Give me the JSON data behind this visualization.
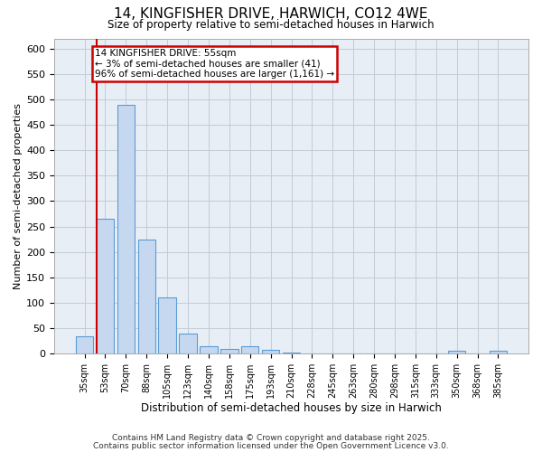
{
  "title_line1": "14, KINGFISHER DRIVE, HARWICH, CO12 4WE",
  "title_line2": "Size of property relative to semi-detached houses in Harwich",
  "xlabel": "Distribution of semi-detached houses by size in Harwich",
  "ylabel": "Number of semi-detached properties",
  "bar_labels": [
    "35sqm",
    "53sqm",
    "70sqm",
    "88sqm",
    "105sqm",
    "123sqm",
    "140sqm",
    "158sqm",
    "175sqm",
    "193sqm",
    "210sqm",
    "228sqm",
    "245sqm",
    "263sqm",
    "280sqm",
    "298sqm",
    "315sqm",
    "333sqm",
    "350sqm",
    "368sqm",
    "385sqm"
  ],
  "bar_values": [
    35,
    265,
    490,
    225,
    110,
    40,
    15,
    10,
    15,
    7,
    2,
    1,
    1,
    1,
    1,
    1,
    0,
    0,
    5,
    0,
    5
  ],
  "bar_color": "#c5d8f0",
  "bar_edge_color": "#5b9bd5",
  "grid_color": "#c0ccd8",
  "bg_color": "#e8eef5",
  "red_line_index": 1,
  "annotation_text": "14 KINGFISHER DRIVE: 55sqm\n← 3% of semi-detached houses are smaller (41)\n96% of semi-detached houses are larger (1,161) →",
  "annotation_box_color": "#ffffff",
  "annotation_edge_color": "#cc0000",
  "red_line_color": "#cc0000",
  "ylim": [
    0,
    620
  ],
  "yticks": [
    0,
    50,
    100,
    150,
    200,
    250,
    300,
    350,
    400,
    450,
    500,
    550,
    600
  ],
  "footer_line1": "Contains HM Land Registry data © Crown copyright and database right 2025.",
  "footer_line2": "Contains public sector information licensed under the Open Government Licence v3.0."
}
